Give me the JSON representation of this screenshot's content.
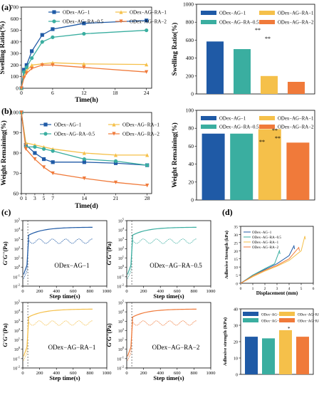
{
  "panel_labels": {
    "a": "(a)",
    "b": "(b)",
    "c": "(c)",
    "d": "(d)"
  },
  "colors": {
    "s1": "#1f5aa6",
    "s2": "#f5c04a",
    "s3": "#3aaea0",
    "s4": "#f07a3a"
  },
  "chart_data": [
    {
      "id": "a_line",
      "type": "line",
      "xlabel": "Time(h)",
      "ylabel": "Swelling Ratio(%)",
      "xlim": [
        0,
        25
      ],
      "ylim": [
        0,
        700
      ],
      "xticks": [
        0,
        6,
        12,
        18,
        24
      ],
      "yticks": [
        0,
        100,
        200,
        300,
        400,
        500,
        600,
        700
      ],
      "legend_position": "top",
      "series": [
        {
          "name": "ODex−AG−1",
          "x": [
            0,
            0.5,
            1,
            2,
            4,
            6,
            12,
            24
          ],
          "values": [
            0,
            160,
            200,
            320,
            460,
            510,
            560,
            585
          ]
        },
        {
          "name": "ODex−AG−RA−1",
          "x": [
            0,
            0.5,
            1,
            2,
            4,
            6,
            12,
            24
          ],
          "values": [
            0,
            110,
            150,
            200,
            210,
            220,
            210,
            205
          ]
        },
        {
          "name": "ODex−AG−RA−0.5",
          "x": [
            0,
            0.5,
            1,
            2,
            4,
            6,
            12,
            24
          ],
          "values": [
            0,
            140,
            180,
            260,
            400,
            440,
            470,
            500
          ]
        },
        {
          "name": "ODex−AG−RA−2",
          "x": [
            0,
            0.5,
            1,
            2,
            4,
            6,
            12,
            24
          ],
          "values": [
            0,
            90,
            130,
            170,
            200,
            200,
            180,
            140
          ]
        }
      ]
    },
    {
      "id": "a_bar",
      "type": "bar",
      "ylabel": "Swelling Ratio(%)",
      "ylim": [
        0,
        1000
      ],
      "yticks": [
        0,
        200,
        400,
        600,
        800,
        1000
      ],
      "categories": [
        "ODex−AG−1",
        "ODex−AG−RA−0.5",
        "ODex−AG−RA−1",
        "ODex−AG−RA−2"
      ],
      "values": [
        585,
        500,
        200,
        135
      ],
      "legend_position": "top",
      "annotations": [
        "**",
        "**",
        "**"
      ]
    },
    {
      "id": "b_line",
      "type": "line",
      "xlabel": "Time(d)",
      "ylabel": "Weight Remaining(%)",
      "xlim": [
        0,
        29
      ],
      "ylim": [
        60,
        100
      ],
      "xticks": [
        0,
        1,
        3,
        5,
        7,
        14,
        21,
        28
      ],
      "yticks": [
        60,
        70,
        80,
        90,
        100
      ],
      "legend_position": "top",
      "series": [
        {
          "name": "ODex−AG−1",
          "x": [
            0,
            1,
            3,
            5,
            7,
            14,
            21,
            28
          ],
          "values": [
            100,
            84,
            80,
            77,
            75.5,
            75.5,
            75,
            74
          ]
        },
        {
          "name": "ODex−AG−RA−1",
          "x": [
            0,
            1,
            3,
            5,
            7,
            14,
            21,
            28
          ],
          "values": [
            100,
            85,
            84,
            83,
            82,
            80,
            79,
            79
          ]
        },
        {
          "name": "ODex−AG−RA−0.5",
          "x": [
            0,
            1,
            3,
            5,
            7,
            14,
            21,
            28
          ],
          "values": [
            100,
            83,
            83,
            82,
            81,
            77,
            76,
            74
          ]
        },
        {
          "name": "ODex−AG−RA−2",
          "x": [
            0,
            1,
            3,
            5,
            7,
            14,
            21,
            28
          ],
          "values": [
            100,
            82,
            77,
            73,
            70,
            67.5,
            65.5,
            64
          ]
        }
      ]
    },
    {
      "id": "b_bar",
      "type": "bar",
      "ylabel": "Weight Remaining(%)",
      "ylim": [
        0,
        100
      ],
      "yticks": [
        0,
        20,
        40,
        60,
        80,
        100
      ],
      "categories": [
        "ODex−AG−1",
        "ODex−AG−RA−0.5",
        "ODex−AG−RA−1",
        "ODex−AG−RA−2"
      ],
      "values": [
        74,
        74,
        79,
        64
      ],
      "legend_position": "top",
      "annotations": [
        "**",
        "**",
        "**"
      ]
    },
    {
      "id": "c1",
      "type": "line",
      "title": "ODex−AG−1",
      "xlabel": "Step time(s)",
      "ylabel": "G'G''(Pa)",
      "xlim": [
        0,
        1000
      ],
      "xticks": [
        0,
        200,
        400,
        600,
        800,
        1000
      ],
      "ylog": true,
      "ylim_exp": [
        -2,
        5
      ]
    },
    {
      "id": "c2",
      "type": "line",
      "title": "ODex−AG−RA−0.5",
      "xlabel": "Step time(s)",
      "ylabel": "G'G''(Pa)",
      "xlim": [
        0,
        1000
      ],
      "xticks": [
        0,
        200,
        400,
        600,
        800,
        1000
      ],
      "ylog": true,
      "ylim_exp": [
        -2,
        5
      ]
    },
    {
      "id": "c3",
      "type": "line",
      "title": "ODex−AG−RA−1",
      "xlabel": "Step time(s)",
      "ylabel": "G'G''(Pa)",
      "xlim": [
        0,
        1000
      ],
      "xticks": [
        0,
        200,
        400,
        600,
        800,
        1000
      ],
      "ylog": true,
      "ylim_exp": [
        -2,
        5
      ]
    },
    {
      "id": "c4",
      "type": "line",
      "title": "ODex−AG−RA−2",
      "xlabel": "Step time(s)",
      "ylabel": "G'G''(Pa)",
      "xlim": [
        0,
        1000
      ],
      "xticks": [
        0,
        200,
        400,
        600,
        800,
        1000
      ],
      "ylog": true,
      "ylim_exp": [
        -2,
        5
      ]
    },
    {
      "id": "d_line",
      "type": "line",
      "xlabel": "Displacement (mm)",
      "ylabel": "Adhesive Strength (kPa)",
      "xlim": [
        0,
        6
      ],
      "ylim": [
        0,
        35
      ],
      "xticks": [
        0,
        1,
        2,
        3,
        4,
        5,
        6
      ],
      "yticks": [
        0,
        5,
        10,
        15,
        20,
        25,
        30,
        35
      ],
      "legend_position": "top-left",
      "series": [
        {
          "name": "ODex−AG−1",
          "x": [
            0,
            1,
            2,
            3,
            4,
            4.4,
            4.45
          ],
          "values": [
            0,
            5,
            8.5,
            12,
            17,
            23,
            21
          ]
        },
        {
          "name": "ODex−AG−RA−0.5",
          "x": [
            0,
            1,
            2,
            2.8,
            3.2,
            3.25
          ],
          "values": [
            0,
            5,
            9,
            12,
            20,
            18
          ]
        },
        {
          "name": "ODex−AG−RA−1",
          "x": [
            0,
            1,
            2,
            3,
            4,
            5,
            5.3,
            5.35
          ],
          "values": [
            0,
            4,
            7.5,
            10.5,
            14,
            20,
            29,
            27
          ]
        },
        {
          "name": "ODex−AG−RA−2",
          "x": [
            0,
            1,
            2,
            3,
            4,
            4.8,
            4.85
          ],
          "values": [
            0,
            4.5,
            8,
            11,
            15,
            22,
            20
          ]
        }
      ]
    },
    {
      "id": "d_bar",
      "type": "bar",
      "ylabel": "Adhesive strength (KPa)",
      "ylim": [
        0,
        40
      ],
      "yticks": [
        0,
        10,
        20,
        30,
        40
      ],
      "categories": [
        "ODex−AG−1",
        "ODex−AG−RA−0.5",
        "ODex−AG−RA−1",
        "ODex−AG−RA−2"
      ],
      "values": [
        23,
        22,
        27,
        23
      ],
      "legend_position": "top",
      "annotations": [
        "*"
      ]
    }
  ]
}
